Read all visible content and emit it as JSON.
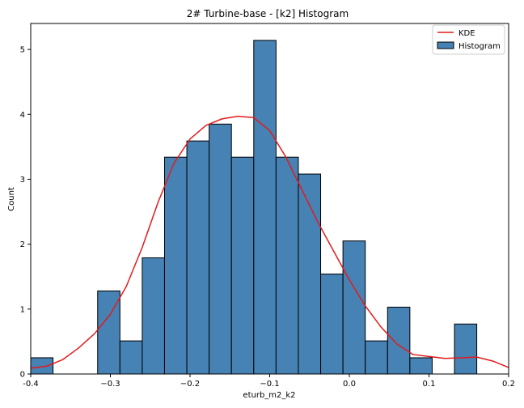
{
  "chart_data": {
    "type": "bar",
    "title": "2# Turbine-base - [k2] Histogram",
    "xlabel": "eturb_m2_k2",
    "ylabel": "Count",
    "xlim": [
      -0.4,
      0.2
    ],
    "ylim": [
      0,
      5.4
    ],
    "x_ticks": [
      -0.4,
      -0.3,
      -0.2,
      -0.1,
      0.0,
      0.1,
      0.2
    ],
    "x_tick_labels": [
      "-0.4",
      "−0.3",
      "−0.2",
      "−0.1",
      "0.0",
      "0.1",
      "0.2"
    ],
    "y_ticks": [
      0,
      1,
      2,
      3,
      4,
      5
    ],
    "y_tick_labels": [
      "0",
      "1",
      "2",
      "3",
      "4",
      "5"
    ],
    "bin_width": 0.028,
    "bins": [
      {
        "left": -0.4,
        "value": 0.25
      },
      {
        "left": -0.372,
        "value": 0.0
      },
      {
        "left": -0.344,
        "value": 0.0
      },
      {
        "left": -0.316,
        "value": 1.28
      },
      {
        "left": -0.288,
        "value": 0.51
      },
      {
        "left": -0.26,
        "value": 1.79
      },
      {
        "left": -0.232,
        "value": 3.34
      },
      {
        "left": -0.204,
        "value": 3.59
      },
      {
        "left": -0.176,
        "value": 3.85
      },
      {
        "left": -0.148,
        "value": 3.34
      },
      {
        "left": -0.12,
        "value": 5.14
      },
      {
        "left": -0.092,
        "value": 3.34
      },
      {
        "left": -0.064,
        "value": 3.08
      },
      {
        "left": -0.036,
        "value": 1.54
      },
      {
        "left": -0.008,
        "value": 2.05
      },
      {
        "left": 0.02,
        "value": 0.51
      },
      {
        "left": 0.048,
        "value": 1.03
      },
      {
        "left": 0.076,
        "value": 0.25
      },
      {
        "left": 0.104,
        "value": 0.0
      },
      {
        "left": 0.132,
        "value": 0.77
      }
    ],
    "kde": {
      "name": "KDE",
      "x": [
        -0.4,
        -0.38,
        -0.36,
        -0.34,
        -0.32,
        -0.3,
        -0.28,
        -0.26,
        -0.24,
        -0.22,
        -0.2,
        -0.18,
        -0.16,
        -0.14,
        -0.12,
        -0.1,
        -0.08,
        -0.06,
        -0.04,
        -0.02,
        0.0,
        0.02,
        0.04,
        0.06,
        0.08,
        0.1,
        0.12,
        0.14,
        0.16,
        0.18,
        0.2
      ],
      "y": [
        0.09,
        0.12,
        0.22,
        0.4,
        0.62,
        0.92,
        1.35,
        1.95,
        2.65,
        3.25,
        3.62,
        3.83,
        3.93,
        3.97,
        3.95,
        3.75,
        3.35,
        2.85,
        2.35,
        1.9,
        1.45,
        1.05,
        0.72,
        0.46,
        0.3,
        0.27,
        0.24,
        0.25,
        0.26,
        0.2,
        0.1
      ]
    },
    "legend": {
      "position": "top-right",
      "entries": [
        {
          "label": "KDE",
          "kind": "line"
        },
        {
          "label": "Histogram",
          "kind": "patch"
        }
      ]
    },
    "colors": {
      "bar_fill": "#4682b4",
      "bar_edge": "#000000",
      "kde": "#e31a1c",
      "axes": "#000000"
    }
  }
}
